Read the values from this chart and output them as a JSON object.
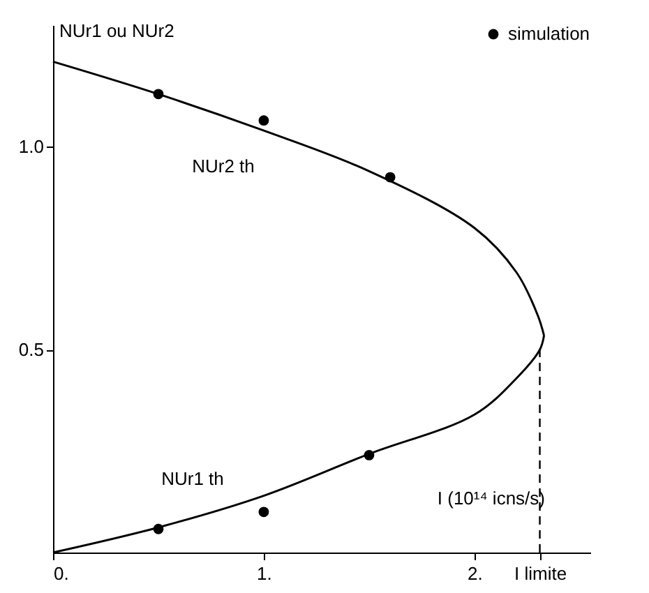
{
  "chart_data": {
    "type": "line",
    "xlabel": "I (10¹⁴ icns/s)",
    "ylabel": "NUr1 ou NUr2",
    "xlim": [
      0,
      2.55
    ],
    "ylim": [
      0,
      1.3
    ],
    "xticks": [
      {
        "value": 0,
        "label": "0."
      },
      {
        "value": 1,
        "label": "1."
      },
      {
        "value": 2,
        "label": "2."
      },
      {
        "value": 2.31,
        "label": "I limite"
      }
    ],
    "yticks": [
      {
        "value": 0.5,
        "label": "0.5"
      },
      {
        "value": 1,
        "label": "1.0"
      }
    ],
    "legend": "top right",
    "series": [
      {
        "name": "NUr2 th",
        "color": "#000000",
        "x": [
          0,
          0.5,
          1.0,
          1.5,
          2.0,
          2.2,
          2.3,
          2.33
        ],
        "values": [
          1.21,
          1.13,
          1.04,
          0.94,
          0.8,
          0.69,
          0.585,
          0.535
        ]
      },
      {
        "name": "NUr1 th",
        "color": "#000000",
        "x": [
          2.33,
          2.31,
          2.2,
          2.0,
          1.5,
          1.0,
          0.5,
          0
        ],
        "values": [
          0.535,
          0.5,
          0.43,
          0.34,
          0.243,
          0.14,
          0.062,
          0
        ]
      },
      {
        "name": "simulation",
        "type": "scatter",
        "marker": "circle",
        "color": "#000000",
        "x": [
          0.5,
          1.0,
          1.6,
          0.5,
          1.0,
          1.5
        ],
        "values": [
          1.13,
          1.065,
          0.925,
          0.058,
          0.1,
          0.24
        ]
      }
    ],
    "ref_lines": [
      {
        "axis": "x",
        "value": 2.31,
        "color": "#000000",
        "line_style": "dashed"
      }
    ]
  }
}
